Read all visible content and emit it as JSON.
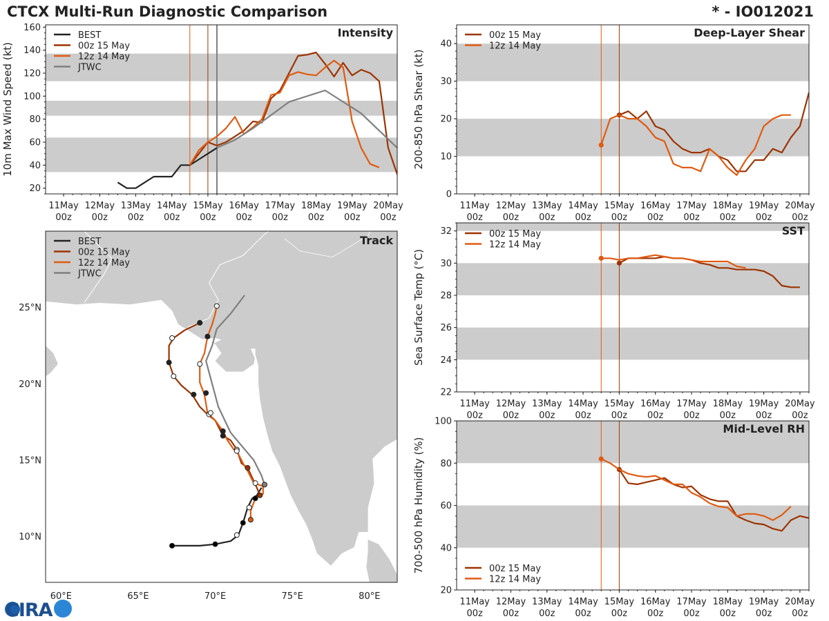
{
  "header": {
    "title": "CTCX Multi-Run Diagnostic Comparison",
    "storm": "* - IO012021"
  },
  "logo": {
    "text": "CIRA",
    "description": "cira-logo"
  },
  "colors": {
    "best": "#222222",
    "r00z15": "#9c3300",
    "r12z14": "#e05a10",
    "jtwc": "#7f7f7f",
    "band": "#cccccc",
    "land": "#cccccc",
    "ocean": "#ffffff"
  },
  "time_axis": {
    "ticks": [
      {
        "day": "11May",
        "hour": "00z"
      },
      {
        "day": "12May",
        "hour": "00z"
      },
      {
        "day": "13May",
        "hour": "00z"
      },
      {
        "day": "14May",
        "hour": "00z"
      },
      {
        "day": "15May",
        "hour": "00z"
      },
      {
        "day": "16May",
        "hour": "00z"
      },
      {
        "day": "17May",
        "hour": "00z"
      },
      {
        "day": "18May",
        "hour": "00z"
      },
      {
        "day": "19May",
        "hour": "00z"
      },
      {
        "day": "20May",
        "hour": "00z"
      }
    ],
    "range_days": [
      -0.5,
      9.25
    ],
    "run_lines_days": {
      "r12z14": 3.5,
      "r00z15": 4.0,
      "jtwc_now": 4.25
    }
  },
  "chart_data": [
    {
      "id": "intensity",
      "type": "line",
      "title": "Intensity",
      "ylabel": "10m Max Wind Speed (kt)",
      "ylim": [
        15,
        162
      ],
      "yticks": [
        "20",
        "40",
        "60",
        "80",
        "100",
        "120",
        "140",
        "160"
      ],
      "bands": [
        [
          34,
          64
        ],
        [
          83,
          96
        ],
        [
          113,
          137
        ]
      ],
      "legend": [
        "BEST",
        "00z 15 May",
        "12z 14 May",
        "JTWC"
      ],
      "x_unit": "days since 11May 00z",
      "series": [
        {
          "name": "BEST",
          "x": [
            1.5,
            1.75,
            2.0,
            2.5,
            3.0,
            3.25,
            3.5,
            3.75,
            4.0,
            4.25
          ],
          "y": [
            25,
            20,
            20,
            30,
            30,
            40,
            40,
            45,
            50,
            55
          ]
        },
        {
          "name": "00z 15 May",
          "x": [
            3.5,
            3.75,
            4.0,
            4.25,
            4.5,
            4.75,
            5.0,
            5.25,
            5.5,
            5.75,
            6.0,
            6.25,
            6.5,
            6.75,
            7.0,
            7.25,
            7.5,
            7.75,
            8.0,
            8.25,
            8.5,
            8.75,
            9.0,
            9.25
          ],
          "y": [
            40,
            50,
            60,
            57,
            60,
            65,
            70,
            78,
            77,
            98,
            105,
            120,
            135,
            136,
            138,
            128,
            117,
            129,
            118,
            123,
            120,
            113,
            55,
            32
          ]
        },
        {
          "name": "12z 14 May",
          "x": [
            3.5,
            3.75,
            4.0,
            4.25,
            4.5,
            4.75,
            5.0,
            5.25,
            5.5,
            5.75,
            6.0,
            6.25,
            6.5,
            6.75,
            7.0,
            7.25,
            7.5,
            7.75,
            8.0,
            8.25,
            8.5,
            8.75
          ],
          "y": [
            40,
            53,
            60,
            65,
            72,
            82,
            67,
            73,
            80,
            101,
            103,
            118,
            121,
            119,
            118,
            125,
            131,
            125,
            78,
            55,
            41,
            38
          ]
        },
        {
          "name": "JTWC",
          "x": [
            4.25,
            4.75,
            5.25,
            6.25,
            7.25,
            8.25,
            9.25
          ],
          "y": [
            55,
            62,
            72,
            95,
            105,
            85,
            55
          ]
        }
      ]
    },
    {
      "id": "shear",
      "type": "line",
      "title": "Deep-Layer Shear",
      "ylabel": "200-850 hPa Shear (kt)",
      "ylim": [
        0,
        45
      ],
      "yticks": [
        "0",
        "10",
        "20",
        "30",
        "40"
      ],
      "bands": [
        [
          10,
          20
        ],
        [
          30,
          40
        ]
      ],
      "legend": [
        "00z 15 May",
        "12z 14 May"
      ],
      "series": [
        {
          "name": "00z 15 May",
          "x": [
            4.0,
            4.25,
            4.5,
            4.75,
            5.0,
            5.25,
            5.5,
            5.75,
            6.0,
            6.25,
            6.5,
            6.75,
            7.0,
            7.25,
            7.5,
            7.75,
            8.0,
            8.25,
            8.5,
            8.75,
            9.0,
            9.25
          ],
          "y": [
            21,
            22,
            20,
            22,
            18,
            17,
            14,
            12,
            11,
            11,
            12,
            10,
            9,
            6,
            6,
            9,
            9,
            12,
            11,
            15,
            18,
            27
          ]
        },
        {
          "name": "12z 14 May",
          "x": [
            3.5,
            3.75,
            4.0,
            4.25,
            4.5,
            4.75,
            5.0,
            5.25,
            5.5,
            5.75,
            6.0,
            6.25,
            6.5,
            6.75,
            7.0,
            7.25,
            7.5,
            7.75,
            8.0,
            8.25,
            8.5,
            8.75
          ],
          "y": [
            13,
            20,
            21,
            20,
            20,
            18,
            15,
            14,
            8,
            7,
            7,
            6,
            12,
            10,
            7,
            5,
            9,
            12,
            18,
            20,
            21,
            21
          ]
        }
      ]
    },
    {
      "id": "sst",
      "type": "line",
      "title": "SST",
      "ylabel": "Sea Surface Temp (°C)",
      "ylim": [
        22,
        32.5
      ],
      "yticks": [
        "22",
        "24",
        "26",
        "28",
        "30",
        "32"
      ],
      "bands": [
        [
          24,
          26
        ],
        [
          28,
          30
        ],
        [
          32,
          32.5
        ]
      ],
      "legend": [
        "00z 15 May",
        "12z 14 May"
      ],
      "series": [
        {
          "name": "00z 15 May",
          "x": [
            4.0,
            4.25,
            4.5,
            4.75,
            5.0,
            5.25,
            5.5,
            5.75,
            6.0,
            6.25,
            6.5,
            6.75,
            7.0,
            7.25,
            7.5,
            7.75,
            8.0,
            8.25,
            8.5,
            8.75,
            9.0
          ],
          "y": [
            30.0,
            30.3,
            30.3,
            30.3,
            30.3,
            30.4,
            30.3,
            30.3,
            30.2,
            30.0,
            29.9,
            29.7,
            29.7,
            29.6,
            29.6,
            29.6,
            29.5,
            29.2,
            28.6,
            28.5,
            28.5
          ]
        },
        {
          "name": "12z 14 May",
          "x": [
            3.5,
            3.75,
            4.0,
            4.25,
            4.5,
            4.75,
            5.0,
            5.25,
            5.5,
            5.75,
            6.0,
            6.25,
            6.5,
            6.75,
            7.0,
            7.25,
            7.5
          ],
          "y": [
            30.3,
            30.3,
            30.2,
            30.3,
            30.3,
            30.4,
            30.5,
            30.4,
            30.3,
            30.3,
            30.2,
            30.1,
            30.1,
            30.1,
            30.1,
            29.8,
            29.7
          ]
        }
      ]
    },
    {
      "id": "rh",
      "type": "line",
      "title": "Mid-Level RH",
      "ylabel": "700-500 hPa Humidity (%)",
      "ylim": [
        20,
        100
      ],
      "yticks": [
        "20",
        "40",
        "60",
        "80",
        "100"
      ],
      "bands": [
        [
          40,
          60
        ],
        [
          80,
          100
        ]
      ],
      "legend": [
        "00z 15 May",
        "12z 14 May"
      ],
      "series": [
        {
          "name": "00z 15 May",
          "x": [
            4.0,
            4.25,
            4.5,
            4.75,
            5.0,
            5.25,
            5.5,
            5.75,
            6.0,
            6.25,
            6.5,
            6.75,
            7.0,
            7.25,
            7.5,
            7.75,
            8.0,
            8.25,
            8.5,
            8.75,
            9.0,
            9.25
          ],
          "y": [
            77,
            70.5,
            70,
            71,
            72,
            73,
            70,
            68.5,
            69,
            65,
            63,
            62,
            62,
            55,
            53,
            51.5,
            51,
            49,
            48,
            53,
            55,
            54
          ]
        },
        {
          "name": "12z 14 May",
          "x": [
            3.5,
            3.75,
            4.0,
            4.25,
            4.5,
            4.75,
            5.0,
            5.25,
            5.5,
            5.75,
            6.0,
            6.25,
            6.5,
            6.75,
            7.0,
            7.25,
            7.5,
            7.75,
            8.0,
            8.25,
            8.5,
            8.75
          ],
          "y": [
            82,
            80,
            77,
            75,
            74,
            73.5,
            74,
            72,
            70,
            70,
            66,
            64,
            61,
            59.5,
            59,
            55,
            56,
            56,
            55,
            53,
            55.5,
            59.5
          ]
        }
      ]
    },
    {
      "id": "track",
      "type": "map",
      "title": "Track",
      "legend": [
        "BEST",
        "00z 15 May",
        "12z 14 May",
        "JTWC"
      ],
      "lon_range": [
        59,
        81.8
      ],
      "lat_range": [
        7,
        30
      ],
      "xticks": [
        {
          "v": 60,
          "label": "60°E"
        },
        {
          "v": 65,
          "label": "65°E"
        },
        {
          "v": 70,
          "label": "70°E"
        },
        {
          "v": 75,
          "label": "75°E"
        },
        {
          "v": 80,
          "label": "80°E"
        }
      ],
      "yticks": [
        {
          "v": 10,
          "label": "10°N"
        },
        {
          "v": 15,
          "label": "15°N"
        },
        {
          "v": 20,
          "label": "20°N"
        },
        {
          "v": 25,
          "label": "25°N"
        }
      ],
      "series": [
        {
          "name": "BEST",
          "lon": [
            67.2,
            68.0,
            69.0,
            70.0,
            71.0,
            71.5,
            71.8,
            72.1,
            72.4,
            72.7,
            73.0
          ],
          "lat": [
            9.4,
            9.4,
            9.4,
            9.5,
            9.7,
            10.1,
            10.9,
            11.9,
            12.5,
            12.7,
            13.2
          ],
          "markers": [
            {
              "lon": 67.2,
              "lat": 9.4,
              "fill": "black"
            },
            {
              "lon": 70.0,
              "lat": 9.5,
              "fill": "black"
            },
            {
              "lon": 71.4,
              "lat": 10.1,
              "fill": "white"
            },
            {
              "lon": 71.8,
              "lat": 10.9,
              "fill": "black"
            },
            {
              "lon": 72.2,
              "lat": 11.9,
              "fill": "white"
            },
            {
              "lon": 72.6,
              "lat": 12.5,
              "fill": "black"
            }
          ]
        },
        {
          "name": "00z 15 May",
          "lon": [
            72.9,
            72.7,
            72.1,
            71.7,
            71.4,
            71.0,
            70.5,
            70.0,
            69.5,
            69.0,
            68.5,
            67.8,
            67.3,
            67.0,
            67.0,
            67.3,
            68.0,
            69.0
          ],
          "lat": [
            12.7,
            13.2,
            14.5,
            14.8,
            15.7,
            16.3,
            16.6,
            17.6,
            18.0,
            18.5,
            19.3,
            19.9,
            20.5,
            21.4,
            22.5,
            23.0,
            23.5,
            24.0
          ],
          "markers": [
            {
              "lon": 72.9,
              "lat": 12.7,
              "fill": "#9c3300"
            },
            {
              "lon": 72.1,
              "lat": 14.5,
              "fill": "#9c3300"
            },
            {
              "lon": 71.4,
              "lat": 15.7,
              "fill": "white"
            },
            {
              "lon": 70.5,
              "lat": 16.6,
              "fill": "#222"
            },
            {
              "lon": 69.6,
              "lat": 18.0,
              "fill": "white"
            },
            {
              "lon": 68.6,
              "lat": 19.3,
              "fill": "#222"
            },
            {
              "lon": 67.3,
              "lat": 20.5,
              "fill": "white"
            },
            {
              "lon": 67.0,
              "lat": 21.4,
              "fill": "#222"
            },
            {
              "lon": 67.2,
              "lat": 23.0,
              "fill": "white"
            },
            {
              "lon": 69.0,
              "lat": 24.0,
              "fill": "#222"
            }
          ]
        },
        {
          "name": "12z 14 May",
          "lon": [
            72.3,
            72.3,
            72.6,
            73.1,
            73.1,
            72.5,
            72.1,
            71.8,
            71.5,
            71.2,
            70.8,
            70.5,
            70.0,
            69.5,
            69.3,
            69.0,
            69.0,
            69.3,
            69.5,
            69.8,
            70.0,
            70.1
          ],
          "lat": [
            11.1,
            11.7,
            12.5,
            12.8,
            13.3,
            13.5,
            14.3,
            14.8,
            15.4,
            15.7,
            16.3,
            16.9,
            17.6,
            18.1,
            19.3,
            20.1,
            21.3,
            22.0,
            23.1,
            23.9,
            24.6,
            25.1
          ],
          "markers": [
            {
              "lon": 72.3,
              "lat": 11.1,
              "fill": "#e05a10"
            },
            {
              "lon": 72.6,
              "lat": 13.5,
              "fill": "white"
            },
            {
              "lon": 71.4,
              "lat": 15.6,
              "fill": "white"
            },
            {
              "lon": 70.5,
              "lat": 16.9,
              "fill": "#222"
            },
            {
              "lon": 69.7,
              "lat": 18.1,
              "fill": "white"
            },
            {
              "lon": 69.4,
              "lat": 19.4,
              "fill": "#222"
            },
            {
              "lon": 69.0,
              "lat": 21.3,
              "fill": "white"
            },
            {
              "lon": 69.5,
              "lat": 23.1,
              "fill": "#222"
            },
            {
              "lon": 70.1,
              "lat": 25.1,
              "fill": "white"
            }
          ]
        },
        {
          "name": "JTWC",
          "lon": [
            73.2,
            73.0,
            72.5,
            72.0,
            71.0,
            70.2,
            69.8,
            69.4,
            69.8,
            70.1,
            71.0,
            71.9
          ],
          "lat": [
            13.4,
            14.0,
            15.0,
            15.6,
            16.8,
            18.5,
            20.0,
            21.5,
            22.5,
            23.6,
            24.6,
            25.8
          ],
          "markers": [
            {
              "lon": 73.2,
              "lat": 13.4,
              "fill": "#7f7f7f"
            }
          ]
        }
      ]
    }
  ]
}
